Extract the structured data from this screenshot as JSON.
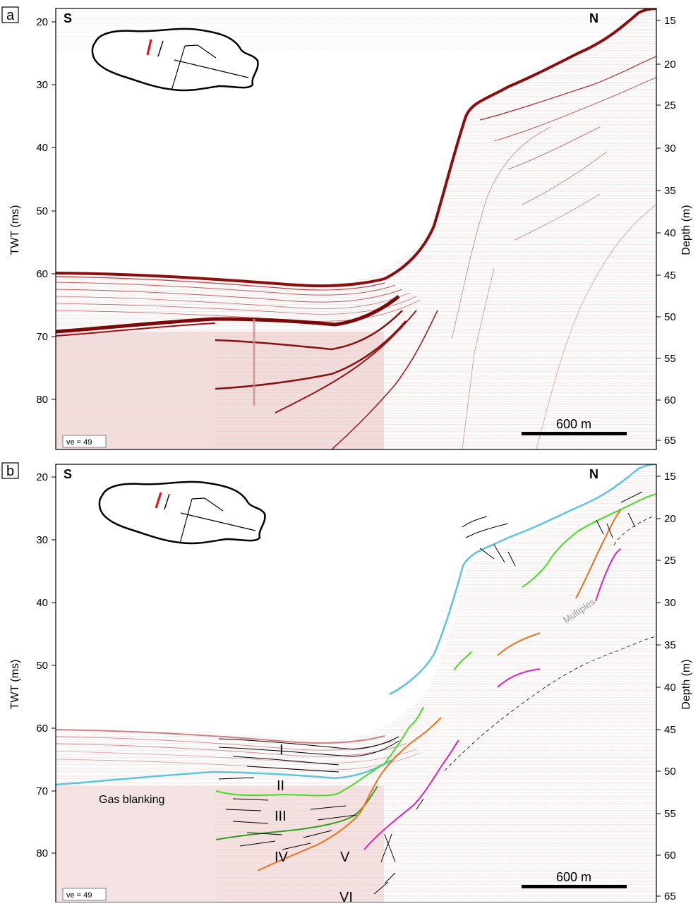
{
  "panels": [
    {
      "id": "a",
      "letter": "a",
      "left_dir": "S",
      "right_dir": "N",
      "y_left_label": "TWT (ms)",
      "y_right_label": "Depth (m)",
      "twt_ticks": [
        "20",
        "30",
        "40",
        "50",
        "60",
        "70",
        "80"
      ],
      "depth_ticks": [
        "15",
        "20",
        "25",
        "30",
        "35",
        "40",
        "45",
        "50",
        "55",
        "60",
        "65"
      ],
      "scale_bar": "600 m",
      "ve": "ve = 49"
    },
    {
      "id": "b",
      "letter": "b",
      "left_dir": "S",
      "right_dir": "N",
      "y_left_label": "TWT (ms)",
      "y_right_label": "Depth (m)",
      "twt_ticks": [
        "20",
        "30",
        "40",
        "50",
        "60",
        "70",
        "80"
      ],
      "depth_ticks": [
        "15",
        "20",
        "25",
        "30",
        "35",
        "40",
        "45",
        "50",
        "55",
        "60",
        "65"
      ],
      "scale_bar": "600 m",
      "ve": "ve = 49",
      "units": [
        "I",
        "II",
        "III",
        "IV",
        "V",
        "VI"
      ],
      "gas_label": "Gas blanking",
      "multiples_label": "Multiples"
    }
  ],
  "colors": {
    "seismic": "#b01818",
    "seafloor": "#5bc5e0",
    "horizon_green": "#44dd22",
    "horizon_darkgreen": "#33a020",
    "horizon_orange": "#f07018",
    "horizon_magenta": "#e020c0",
    "location_line": "#e01010"
  }
}
